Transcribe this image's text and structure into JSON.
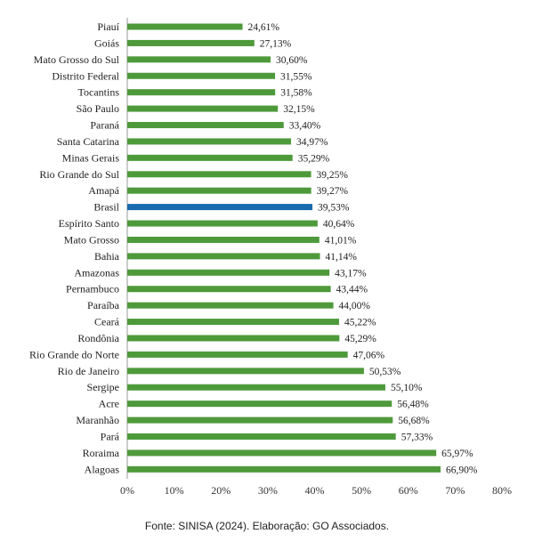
{
  "chart_data": {
    "type": "bar",
    "orientation": "horizontal",
    "categories": [
      "Piauí",
      "Goiás",
      "Mato Grosso do Sul",
      "Distrito Federal",
      "Tocantins",
      "São Paulo",
      "Paraná",
      "Santa Catarina",
      "Minas Gerais",
      "Rio Grande do Sul",
      "Amapá",
      "Brasil",
      "Espírito Santo",
      "Mato Grosso",
      "Bahia",
      "Amazonas",
      "Pernambuco",
      "Paraíba",
      "Ceará",
      "Rondônia",
      "Rio Grande do Norte",
      "Rio de Janeiro",
      "Sergipe",
      "Acre",
      "Maranhão",
      "Pará",
      "Roraima",
      "Alagoas"
    ],
    "values": [
      24.61,
      27.13,
      30.6,
      31.55,
      31.58,
      32.15,
      33.4,
      34.97,
      35.29,
      39.25,
      39.27,
      39.53,
      40.64,
      41.01,
      41.14,
      43.17,
      43.44,
      44.0,
      45.22,
      45.29,
      47.06,
      50.53,
      55.1,
      56.48,
      56.68,
      57.33,
      65.97,
      66.9
    ],
    "value_labels": [
      "24,61%",
      "27,13%",
      "30,60%",
      "31,55%",
      "31,58%",
      "32,15%",
      "33,40%",
      "34,97%",
      "35,29%",
      "39,25%",
      "39,27%",
      "39,53%",
      "40,64%",
      "41,01%",
      "41,14%",
      "43,17%",
      "43,44%",
      "44,00%",
      "45,22%",
      "45,29%",
      "47,06%",
      "50,53%",
      "55,10%",
      "56,48%",
      "56,68%",
      "57,33%",
      "65,97%",
      "66,90%"
    ],
    "highlight_category": "Brasil",
    "xlim": [
      0,
      80
    ],
    "xticks": [
      "0%",
      "10%",
      "20%",
      "30%",
      "40%",
      "50%",
      "60%",
      "70%",
      "80%"
    ],
    "colors": {
      "bar": "#4e9a3b",
      "highlight": "#1a6aae",
      "axis": "#999999"
    },
    "grid": false,
    "legend": "none"
  },
  "source": "Fonte: SINISA (2024). Elaboração: GO Associados."
}
